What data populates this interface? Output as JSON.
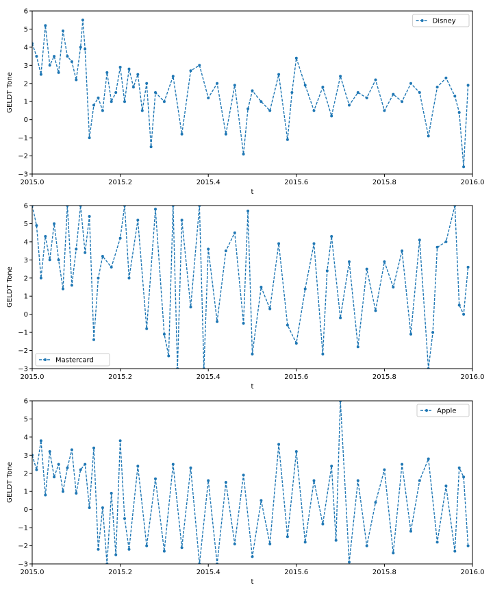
{
  "chart_data": [
    {
      "type": "line",
      "xlabel": "t",
      "ylabel": "GELDT Tone",
      "xlim": [
        2015.0,
        2016.0
      ],
      "ylim": [
        -3,
        6
      ],
      "xticks": [
        "2015.0",
        "2015.2",
        "2015.4",
        "2015.6",
        "2015.8",
        "2016.0"
      ],
      "yticks": [
        "−3",
        "−2",
        "−1",
        "0",
        "1",
        "2",
        "3",
        "4",
        "5",
        "6"
      ],
      "legend": "top-right",
      "grid": false,
      "series": [
        {
          "name": "Disney",
          "color": "#1f77b4",
          "style": "dashed-with-dots",
          "x": [
            2015.0,
            2015.01,
            2015.02,
            2015.03,
            2015.04,
            2015.05,
            2015.06,
            2015.07,
            2015.08,
            2015.09,
            2015.1,
            2015.11,
            2015.115,
            2015.12,
            2015.13,
            2015.14,
            2015.15,
            2015.16,
            2015.17,
            2015.18,
            2015.19,
            2015.2,
            2015.21,
            2015.22,
            2015.23,
            2015.24,
            2015.25,
            2015.26,
            2015.27,
            2015.28,
            2015.3,
            2015.32,
            2015.34,
            2015.36,
            2015.38,
            2015.4,
            2015.42,
            2015.44,
            2015.46,
            2015.48,
            2015.49,
            2015.5,
            2015.52,
            2015.54,
            2015.56,
            2015.58,
            2015.59,
            2015.6,
            2015.62,
            2015.64,
            2015.66,
            2015.68,
            2015.7,
            2015.72,
            2015.74,
            2015.76,
            2015.78,
            2015.8,
            2015.82,
            2015.84,
            2015.86,
            2015.88,
            2015.9,
            2015.92,
            2015.94,
            2015.96,
            2015.97,
            2015.98,
            2015.99
          ],
          "y": [
            4.2,
            3.5,
            2.5,
            5.2,
            3.0,
            3.5,
            2.6,
            4.9,
            3.5,
            3.2,
            2.2,
            4.0,
            5.5,
            3.9,
            -1.0,
            0.8,
            1.2,
            0.5,
            2.6,
            1.0,
            1.5,
            2.9,
            1.0,
            2.8,
            1.8,
            2.5,
            0.5,
            2.0,
            -1.5,
            1.5,
            1.0,
            2.4,
            -0.8,
            2.7,
            3.0,
            1.2,
            2.0,
            -0.8,
            1.9,
            -1.9,
            0.6,
            1.6,
            1.0,
            0.5,
            2.5,
            -1.1,
            1.5,
            3.4,
            1.9,
            0.5,
            1.8,
            0.2,
            2.4,
            0.8,
            1.5,
            1.2,
            2.2,
            0.5,
            1.4,
            1.0,
            2.0,
            1.5,
            -0.9,
            1.8,
            2.3,
            1.3,
            0.4,
            -2.6,
            1.9
          ]
        }
      ]
    },
    {
      "type": "line",
      "xlabel": "t",
      "ylabel": "GELDT Tone",
      "xlim": [
        2015.0,
        2016.0
      ],
      "ylim": [
        -3,
        6
      ],
      "xticks": [
        "2015.0",
        "2015.2",
        "2015.4",
        "2015.6",
        "2015.8",
        "2016.0"
      ],
      "yticks": [
        "−3",
        "−2",
        "−1",
        "0",
        "1",
        "2",
        "3",
        "4",
        "5",
        "6"
      ],
      "legend": "bottom-left",
      "grid": false,
      "series": [
        {
          "name": "Mastercard",
          "color": "#1f77b4",
          "style": "dashed-with-dots",
          "x": [
            2015.0,
            2015.01,
            2015.02,
            2015.03,
            2015.04,
            2015.05,
            2015.06,
            2015.07,
            2015.08,
            2015.09,
            2015.1,
            2015.11,
            2015.12,
            2015.13,
            2015.14,
            2015.15,
            2015.16,
            2015.18,
            2015.2,
            2015.21,
            2015.22,
            2015.24,
            2015.26,
            2015.28,
            2015.3,
            2015.31,
            2015.32,
            2015.33,
            2015.34,
            2015.36,
            2015.38,
            2015.39,
            2015.4,
            2015.42,
            2015.44,
            2015.46,
            2015.48,
            2015.49,
            2015.5,
            2015.52,
            2015.54,
            2015.56,
            2015.58,
            2015.6,
            2015.62,
            2015.64,
            2015.66,
            2015.67,
            2015.68,
            2015.7,
            2015.72,
            2015.74,
            2015.76,
            2015.78,
            2015.8,
            2015.82,
            2015.84,
            2015.86,
            2015.88,
            2015.9,
            2015.91,
            2015.92,
            2015.94,
            2015.96,
            2015.97,
            2015.98,
            2015.99
          ],
          "y": [
            6.0,
            4.9,
            2.0,
            4.3,
            3.0,
            5.0,
            3.0,
            1.4,
            6.0,
            1.6,
            3.6,
            6.0,
            3.4,
            5.4,
            -1.4,
            2.0,
            3.2,
            2.6,
            4.2,
            6.0,
            2.0,
            5.2,
            -0.8,
            5.8,
            -1.1,
            -2.3,
            6.0,
            -3.0,
            5.2,
            0.4,
            6.0,
            -3.0,
            3.6,
            -0.4,
            3.5,
            4.5,
            -0.5,
            5.7,
            -2.2,
            1.5,
            0.3,
            3.9,
            -0.6,
            -1.6,
            1.4,
            3.9,
            -2.2,
            2.4,
            4.3,
            -0.2,
            2.9,
            -1.8,
            2.5,
            0.2,
            2.9,
            1.5,
            3.5,
            -1.1,
            4.1,
            -3.0,
            -1.0,
            3.7,
            4.0,
            6.0,
            0.5,
            0.0,
            2.6
          ]
        }
      ]
    },
    {
      "type": "line",
      "xlabel": "t",
      "ylabel": "GELDT Tone",
      "xlim": [
        2015.0,
        2016.0
      ],
      "ylim": [
        -3,
        6
      ],
      "xticks": [
        "2015.0",
        "2015.2",
        "2015.4",
        "2015.6",
        "2015.8",
        "2016.0"
      ],
      "yticks": [
        "−3",
        "−2",
        "−1",
        "0",
        "1",
        "2",
        "3",
        "4",
        "5",
        "6"
      ],
      "legend": "top-right",
      "grid": false,
      "series": [
        {
          "name": "Apple",
          "color": "#1f77b4",
          "style": "dashed-with-dots",
          "x": [
            2015.0,
            2015.01,
            2015.02,
            2015.03,
            2015.04,
            2015.05,
            2015.06,
            2015.07,
            2015.08,
            2015.09,
            2015.1,
            2015.11,
            2015.12,
            2015.13,
            2015.14,
            2015.15,
            2015.16,
            2015.17,
            2015.18,
            2015.19,
            2015.2,
            2015.21,
            2015.22,
            2015.24,
            2015.26,
            2015.28,
            2015.3,
            2015.32,
            2015.34,
            2015.36,
            2015.38,
            2015.4,
            2015.42,
            2015.44,
            2015.46,
            2015.48,
            2015.5,
            2015.52,
            2015.54,
            2015.56,
            2015.58,
            2015.6,
            2015.62,
            2015.64,
            2015.66,
            2015.68,
            2015.69,
            2015.7,
            2015.72,
            2015.74,
            2015.76,
            2015.78,
            2015.8,
            2015.82,
            2015.84,
            2015.86,
            2015.88,
            2015.9,
            2015.92,
            2015.94,
            2015.96,
            2015.97,
            2015.98,
            2015.99
          ],
          "y": [
            3.0,
            2.2,
            3.8,
            0.8,
            3.2,
            1.8,
            2.5,
            1.0,
            2.3,
            3.3,
            0.9,
            2.2,
            2.5,
            0.1,
            3.4,
            -2.2,
            0.1,
            -3.0,
            0.9,
            -2.5,
            3.8,
            -0.5,
            -2.2,
            2.4,
            -2.0,
            1.7,
            -2.3,
            2.5,
            -2.1,
            2.3,
            -3.0,
            1.6,
            -3.0,
            1.5,
            -1.9,
            1.9,
            -2.6,
            0.5,
            -1.9,
            3.6,
            -1.5,
            3.2,
            -1.8,
            1.6,
            -0.8,
            2.4,
            -1.7,
            6.0,
            -2.9,
            1.6,
            -2.0,
            0.4,
            2.2,
            -2.4,
            2.5,
            -1.2,
            1.6,
            2.8,
            -1.8,
            1.3,
            -2.3,
            2.3,
            1.8,
            -2.0
          ]
        }
      ]
    }
  ]
}
